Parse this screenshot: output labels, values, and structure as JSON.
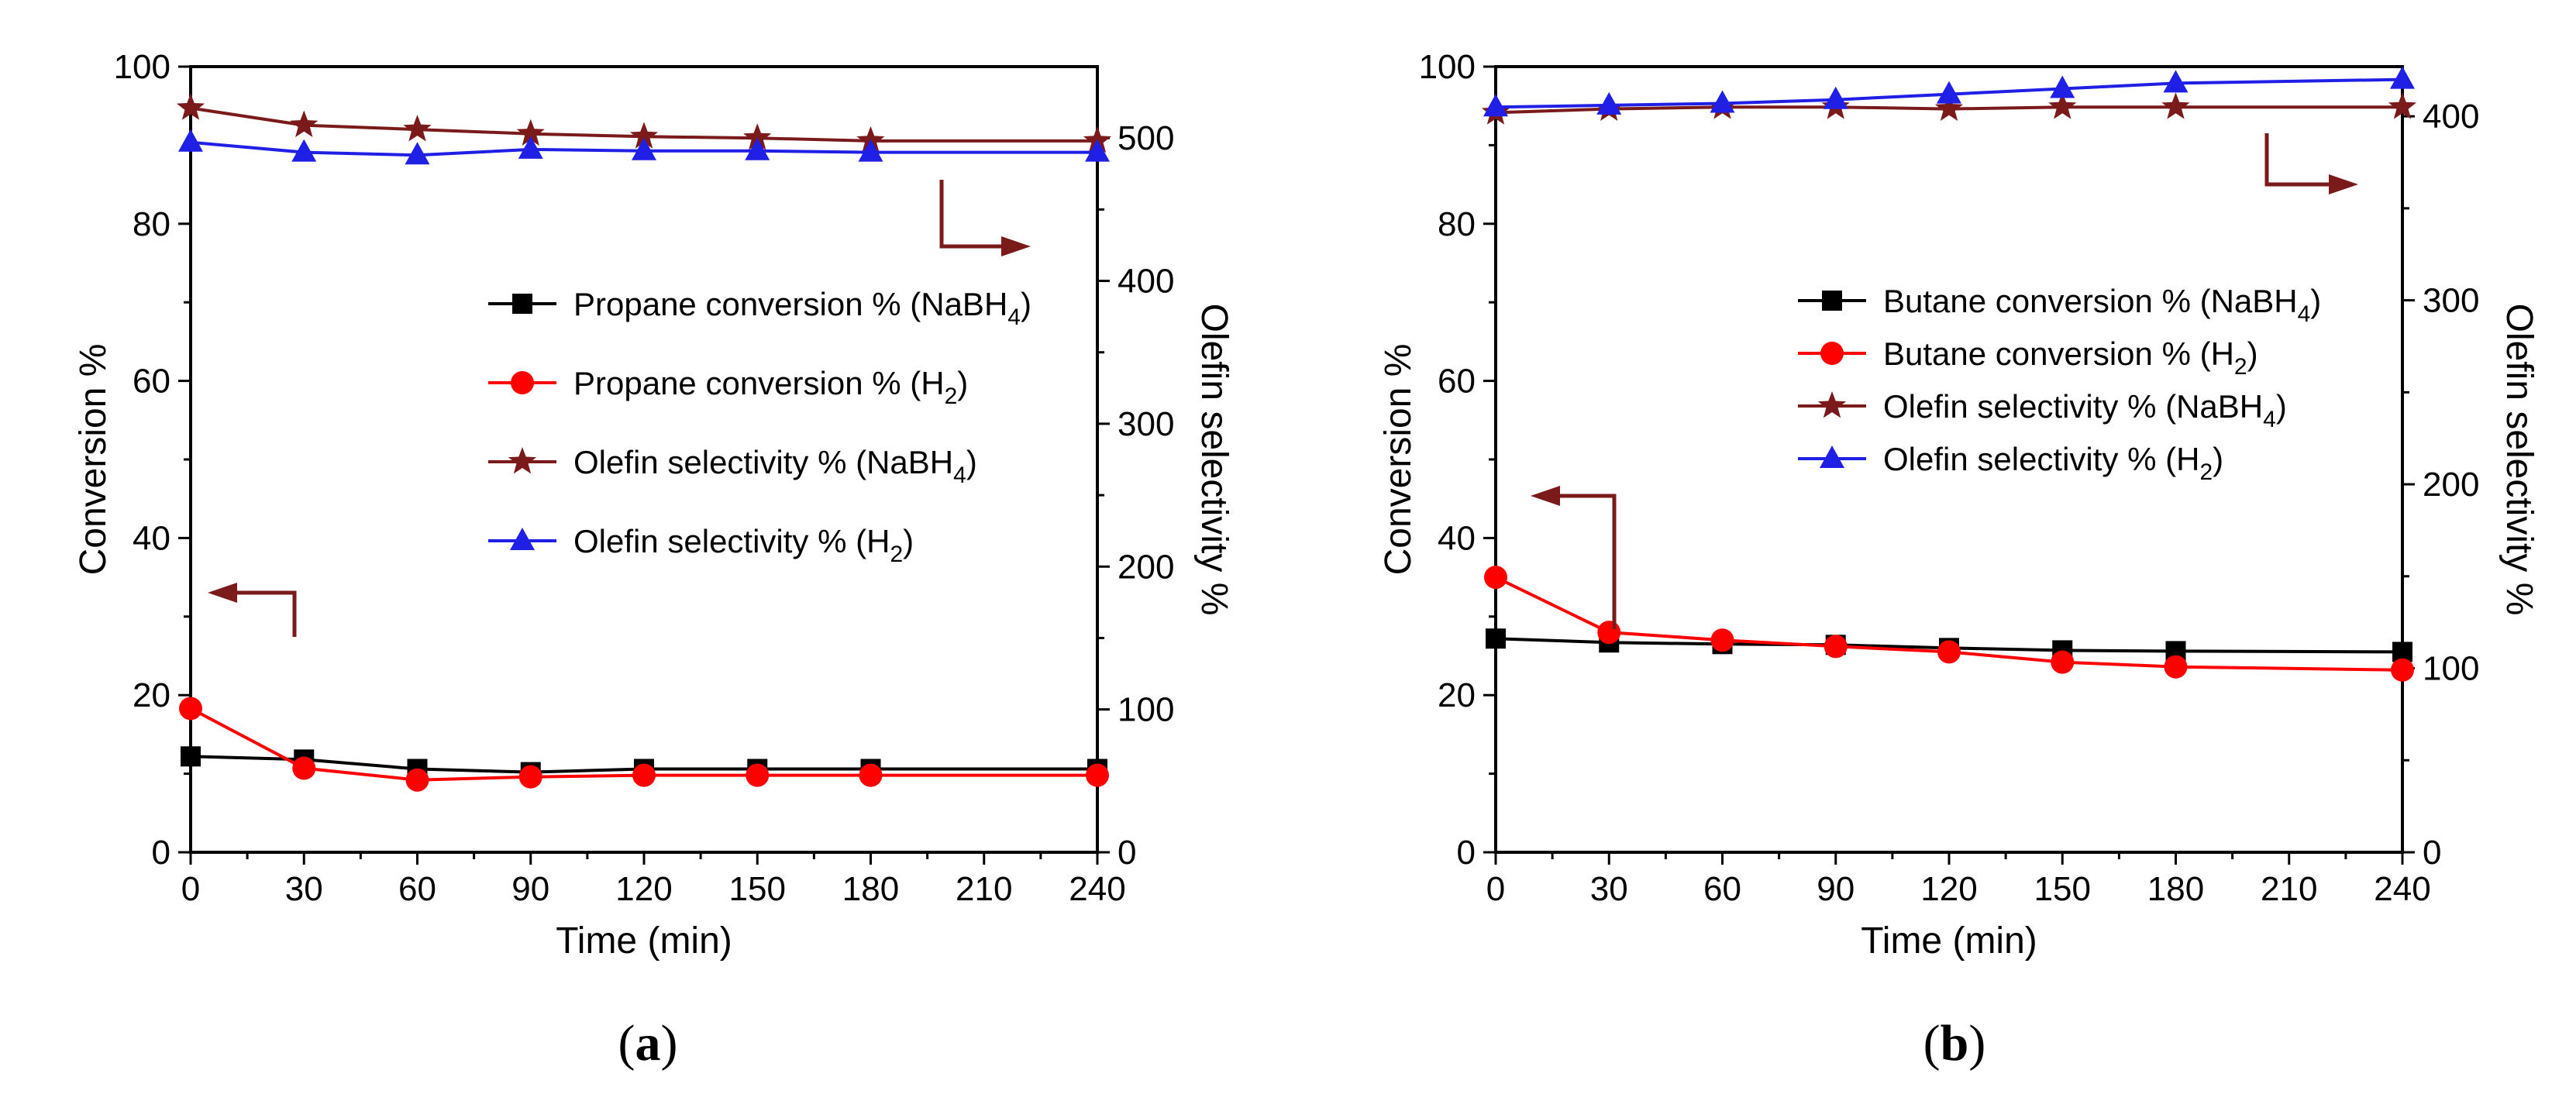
{
  "figure": {
    "colors": {
      "black": "#000000",
      "red": "#ff0000",
      "maroon": "#7b1a1a",
      "blue": "#1f1fe6",
      "arrow": "#7b1a1a"
    }
  },
  "chart_data": [
    {
      "type": "line",
      "panel_caption": [
        "(",
        "a",
        ")"
      ],
      "xlabel": "Time (min)",
      "ylabel_left": "Conversion %",
      "ylabel_right": "Olefin selectivity %",
      "xlim": [
        0,
        240
      ],
      "ylim_left": [
        0,
        100
      ],
      "ylim_right": [
        0,
        550
      ],
      "xticks": [
        0,
        30,
        60,
        90,
        120,
        150,
        180,
        210,
        240
      ],
      "yticks_left": [
        0,
        20,
        40,
        60,
        80,
        100
      ],
      "yticks_right": [
        0,
        100,
        200,
        300,
        400,
        500
      ],
      "grid": false,
      "legend_position": "center-right",
      "series": [
        {
          "name": "Propane conversion % (NaBH4)",
          "label_main": "Propane conversion % (NaBH",
          "label_sub": "4",
          "label_tail": ")",
          "axis": "left",
          "marker": "square",
          "color": "#000000",
          "x": [
            0,
            30,
            60,
            90,
            120,
            150,
            180,
            240
          ],
          "values": [
            12.2,
            11.8,
            10.6,
            10.2,
            10.6,
            10.6,
            10.6,
            10.6
          ]
        },
        {
          "name": "Propane conversion % (H2)",
          "label_main": "Propane conversion % (H",
          "label_sub": "2",
          "label_tail": ")",
          "axis": "left",
          "marker": "circle",
          "color": "#ff0000",
          "x": [
            0,
            30,
            60,
            90,
            120,
            150,
            180,
            240
          ],
          "values": [
            18.3,
            10.7,
            9.2,
            9.6,
            9.8,
            9.8,
            9.8,
            9.8
          ]
        },
        {
          "name": "Olefin selectivity % (NaBH4)",
          "label_main": "Olefin selectivity % (NaBH",
          "label_sub": "4",
          "label_tail": ")",
          "axis": "right",
          "marker": "star",
          "color": "#7b1a1a",
          "x": [
            0,
            30,
            60,
            90,
            120,
            150,
            180,
            240
          ],
          "values": [
            521,
            509,
            506,
            503,
            501,
            500,
            498,
            498
          ]
        },
        {
          "name": "Olefin selectivity % (H2)",
          "label_main": "Olefin selectivity % (H",
          "label_sub": "2",
          "label_tail": ")",
          "axis": "right",
          "marker": "triangle",
          "color": "#1f1fe6",
          "x": [
            0,
            30,
            60,
            90,
            120,
            150,
            180,
            240
          ],
          "values": [
            497,
            490,
            488,
            492,
            491,
            491,
            490,
            490
          ]
        }
      ],
      "annotations": [
        {
          "type": "arrow",
          "direction": "left",
          "meaning": "conversion series read on left axis"
        },
        {
          "type": "arrow",
          "direction": "right",
          "meaning": "selectivity series read on right axis"
        }
      ]
    },
    {
      "type": "line",
      "panel_caption": [
        "(",
        "b",
        ")"
      ],
      "xlabel": "Time (min)",
      "ylabel_left": "Conversion %",
      "ylabel_right": "Olefin selectivity %",
      "xlim": [
        0,
        240
      ],
      "ylim_left": [
        0,
        100
      ],
      "ylim_right": [
        0,
        427
      ],
      "xticks": [
        0,
        30,
        60,
        90,
        120,
        150,
        180,
        210,
        240
      ],
      "yticks_left": [
        0,
        20,
        40,
        60,
        80,
        100
      ],
      "yticks_right": [
        0,
        100,
        200,
        300,
        400
      ],
      "grid": false,
      "legend_position": "center-right",
      "series": [
        {
          "name": "Butane conversion % (NaBH4)",
          "label_main": "Butane conversion % (NaBH",
          "label_sub": "4",
          "label_tail": ")",
          "axis": "left",
          "marker": "square",
          "color": "#000000",
          "x": [
            0,
            30,
            60,
            90,
            120,
            150,
            180,
            240
          ],
          "values": [
            27.2,
            26.7,
            26.5,
            26.4,
            26.0,
            25.7,
            25.6,
            25.5
          ]
        },
        {
          "name": "Butane conversion % (H2)",
          "label_main": "Butane conversion % (H",
          "label_sub": "2",
          "label_tail": ")",
          "axis": "left",
          "marker": "circle",
          "color": "#ff0000",
          "x": [
            0,
            30,
            60,
            90,
            120,
            150,
            180,
            240
          ],
          "values": [
            35.0,
            28.0,
            27.0,
            26.2,
            25.5,
            24.2,
            23.6,
            23.2
          ]
        },
        {
          "name": "Olefin selectivity % (NaBH4)",
          "label_main": "Olefin selectivity % (NaBH",
          "label_sub": "4",
          "label_tail": ")",
          "axis": "right",
          "marker": "star",
          "color": "#7b1a1a",
          "x": [
            0,
            30,
            60,
            90,
            120,
            150,
            180,
            240
          ],
          "values": [
            402,
            404,
            405,
            405,
            404,
            405,
            405,
            405
          ]
        },
        {
          "name": "Olefin selectivity % (H2)",
          "label_main": "Olefin selectivity % (H",
          "label_sub": "2",
          "label_tail": ")",
          "axis": "right",
          "marker": "triangle",
          "color": "#1f1fe6",
          "x": [
            0,
            30,
            60,
            90,
            120,
            150,
            180,
            240
          ],
          "values": [
            405,
            406,
            407,
            409,
            412,
            415,
            418,
            420
          ]
        }
      ],
      "annotations": [
        {
          "type": "arrow",
          "direction": "left",
          "meaning": "conversion series read on left axis"
        },
        {
          "type": "arrow",
          "direction": "right",
          "meaning": "selectivity series read on right axis"
        }
      ]
    }
  ]
}
